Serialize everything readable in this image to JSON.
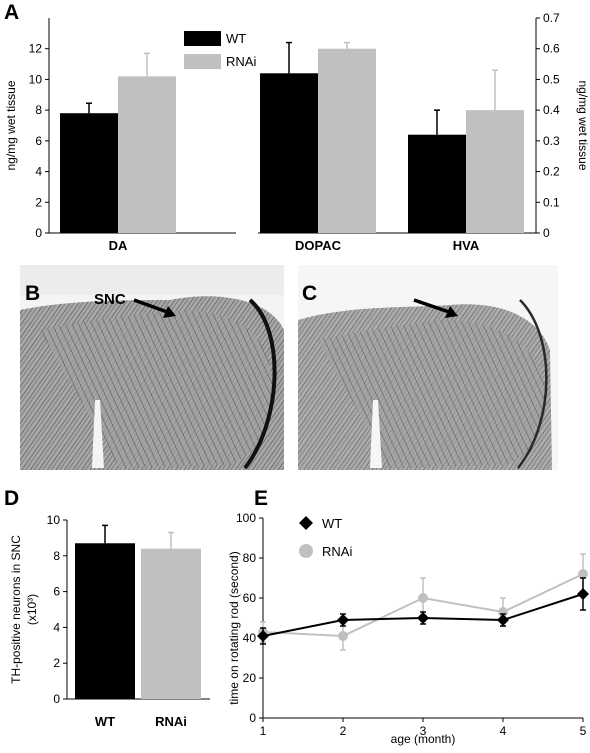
{
  "panels": {
    "a": "A",
    "b": "B",
    "c": "C",
    "d": "D",
    "e": "E"
  },
  "micrograph": {
    "snc_label": "SNC"
  },
  "colors": {
    "wt": "#000000",
    "rnai": "#c0c0c0",
    "line_wt": "#000000",
    "line_rnai": "#c0c0c0"
  },
  "chart_data": [
    {
      "panel": "A",
      "type": "bar",
      "series_names": [
        "WT",
        "RNAi"
      ],
      "left": {
        "ylabel": "ng/mg wet tissue",
        "ylim": [
          0,
          14
        ],
        "yticks": [
          "0",
          "2",
          "4",
          "6",
          "8",
          "10",
          "12"
        ],
        "categories": [
          "DA"
        ],
        "series": [
          {
            "name": "WT",
            "values": [
              7.8
            ],
            "errors": [
              0.65
            ]
          },
          {
            "name": "RNAi",
            "values": [
              10.2
            ],
            "errors": [
              1.5
            ]
          }
        ]
      },
      "right": {
        "ylabel": "ng/mg wet tissue",
        "ylim": [
          0,
          0.7
        ],
        "yticks": [
          "0",
          "0.1",
          "0.2",
          "0.3",
          "0.4",
          "0.5",
          "0.6",
          "0.7"
        ],
        "categories": [
          "DOPAC",
          "HVA"
        ],
        "series": [
          {
            "name": "WT",
            "values": [
              0.52,
              0.32
            ],
            "errors": [
              0.1,
              0.08
            ]
          },
          {
            "name": "RNAi",
            "values": [
              0.6,
              0.4
            ],
            "errors": [
              0.02,
              0.13
            ]
          }
        ]
      }
    },
    {
      "panel": "D",
      "type": "bar",
      "ylabel": "TH-positive neurons in SNC",
      "ylabel2": "(x10³)",
      "ylim": [
        0,
        10
      ],
      "yticks": [
        "0",
        "2",
        "4",
        "6",
        "8",
        "10"
      ],
      "categories": [
        "WT",
        "RNAi"
      ],
      "values": [
        8.7,
        8.4
      ],
      "errors": [
        1.0,
        0.9
      ]
    },
    {
      "panel": "E",
      "type": "line",
      "xlabel": "age (month)",
      "ylabel": "time on rotating rod (second)",
      "xlim": [
        1,
        5
      ],
      "ylim": [
        0,
        100
      ],
      "xticks": [
        "1",
        "2",
        "3",
        "4",
        "5"
      ],
      "yticks": [
        "0",
        "20",
        "40",
        "60",
        "80",
        "100"
      ],
      "x": [
        1,
        2,
        3,
        4,
        5
      ],
      "series": [
        {
          "name": "WT",
          "values": [
            41,
            49,
            50,
            49,
            62
          ],
          "errors": [
            4,
            3,
            3,
            3,
            8
          ]
        },
        {
          "name": "RNAi",
          "values": [
            43,
            41,
            60,
            53,
            72
          ],
          "errors": [
            5,
            7,
            10,
            7,
            10
          ]
        }
      ]
    }
  ]
}
